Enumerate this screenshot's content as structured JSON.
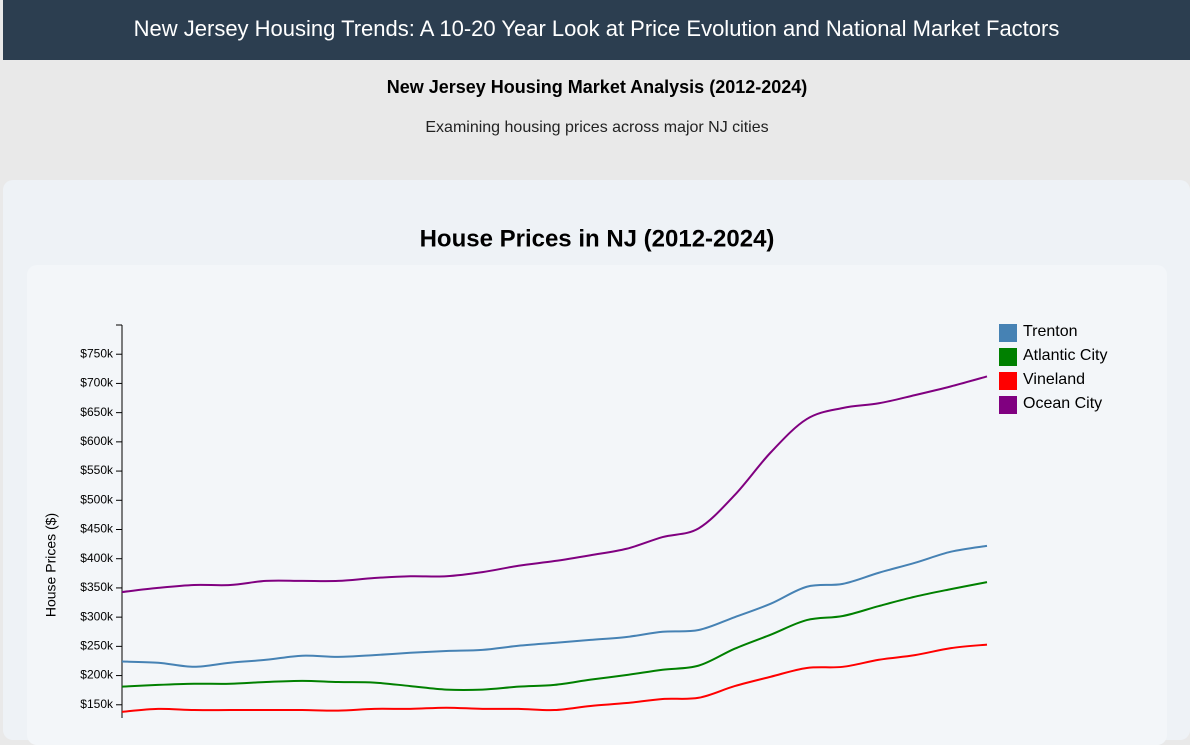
{
  "header": {
    "title": "New Jersey Housing Trends: A 10-20 Year Look at Price Evolution and National Market Factors"
  },
  "intro": {
    "heading": "New Jersey Housing Market Analysis (2012-2024)",
    "text": "Examining housing prices across major NJ cities"
  },
  "chart_data": {
    "type": "line",
    "title": "House Prices in NJ (2012-2024)",
    "y_label": "House Prices ($)",
    "categories": [
      null,
      null,
      null,
      null,
      null,
      null,
      null,
      null,
      null,
      null,
      null,
      null,
      null,
      null,
      null,
      null,
      null,
      null,
      null,
      null,
      null,
      null,
      null,
      null,
      null
    ],
    "ylim": [
      100000,
      800000
    ],
    "yticks": [
      {
        "value": 150000,
        "label": "$150k"
      },
      {
        "value": 200000,
        "label": "$200k"
      },
      {
        "value": 250000,
        "label": "$250k"
      },
      {
        "value": 300000,
        "label": "$300k"
      },
      {
        "value": 350000,
        "label": "$350k"
      },
      {
        "value": 400000,
        "label": "$400k"
      },
      {
        "value": 450000,
        "label": "$450k"
      },
      {
        "value": 500000,
        "label": "$500k"
      },
      {
        "value": 550000,
        "label": "$550k"
      },
      {
        "value": 600000,
        "label": "$600k"
      },
      {
        "value": 650000,
        "label": "$650k"
      },
      {
        "value": 700000,
        "label": "$700k"
      },
      {
        "value": 750000,
        "label": "$750k"
      }
    ],
    "legend": "top-right",
    "series": [
      {
        "name": "Trenton",
        "color": "#4682b4",
        "values": [
          224000,
          222000,
          215000,
          222000,
          227000,
          234000,
          232000,
          235000,
          239000,
          242000,
          244000,
          251000,
          256000,
          261000,
          266000,
          275000,
          278000,
          300000,
          323000,
          352000,
          357000,
          376000,
          393000,
          412000,
          422000
        ]
      },
      {
        "name": "Atlantic City",
        "color": "#008000",
        "values": [
          181000,
          184000,
          186000,
          186000,
          189000,
          191000,
          189000,
          188000,
          182000,
          176000,
          176000,
          181000,
          184000,
          193000,
          201000,
          210000,
          217000,
          246000,
          270000,
          295000,
          302000,
          319000,
          335000,
          348000,
          360000
        ]
      },
      {
        "name": "Vineland",
        "color": "#ff0000",
        "values": [
          138000,
          143000,
          141000,
          141000,
          141000,
          141000,
          140000,
          143000,
          143000,
          145000,
          143000,
          143000,
          141000,
          148000,
          153000,
          160000,
          162000,
          182000,
          198000,
          213000,
          215000,
          227000,
          235000,
          247000,
          253000
        ]
      },
      {
        "name": "Ocean City",
        "color": "#800080",
        "values": [
          343000,
          350000,
          355000,
          355000,
          362000,
          362000,
          362000,
          367000,
          370000,
          370000,
          377000,
          388000,
          396000,
          406000,
          417000,
          437000,
          452000,
          509000,
          582000,
          639000,
          658000,
          666000,
          680000,
          695000,
          712000
        ]
      }
    ]
  }
}
